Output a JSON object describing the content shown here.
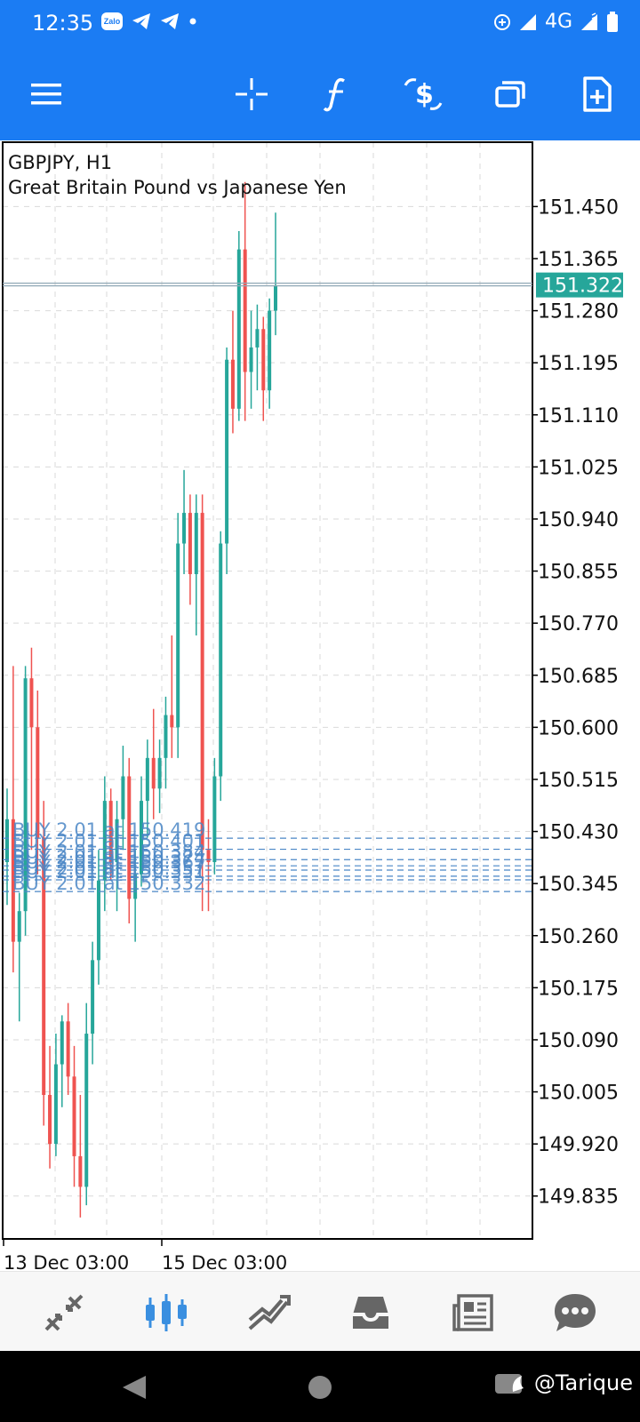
{
  "status_bar": {
    "time": "12:35",
    "zalo_label": "Zalo",
    "network": "4G",
    "left_icons": [
      "zalo-icon",
      "telegram-icon",
      "telegram-icon",
      "dot-icon"
    ],
    "right_icons": [
      "data-saver-icon",
      "signal-icon",
      "wifi-signal-icon",
      "battery-icon"
    ]
  },
  "toolbar": {
    "icons": [
      "menu-icon",
      "crosshair-icon",
      "indicators-icon",
      "trade-icon",
      "windows-icon",
      "new-order-icon"
    ]
  },
  "chart": {
    "symbol_line": "GBPJPY, H1",
    "description": "Great Britain Pound vs Japanese Yen",
    "current_price_label": "151.322",
    "price_labels": [
      "151.450",
      "151.365",
      "151.280",
      "151.195",
      "151.110",
      "151.025",
      "150.940",
      "150.855",
      "150.770",
      "150.685",
      "150.600",
      "150.515",
      "150.430",
      "150.345",
      "150.260",
      "150.175",
      "150.090",
      "150.005",
      "149.920",
      "149.835"
    ],
    "time_labels": [
      "13 Dec 03:00",
      "15 Dec 03:00"
    ],
    "order_labels": [
      "BUY 2.01 at 150.419",
      "BUY 2.01 at 150.401",
      "BUY 2.01 at 150.384",
      "BUY 2.01 at 150.374",
      "BUY 2.01 at 150.367",
      "BUY 2.01 at 150.357",
      "BUY 2.01 at 150.351",
      "BUY 2.01 at 150.332"
    ],
    "colors": {
      "bull": "#26a69a",
      "bear": "#ef5350",
      "order_line": "#4a86c6",
      "price_badge": "#26a69a"
    }
  },
  "chart_data": {
    "type": "candlestick",
    "y_range": [
      149.765,
      151.555
    ],
    "x_labels": [
      "13 Dec 03:00",
      "15 Dec 03:00"
    ],
    "current_price": 151.322,
    "orders": [
      150.419,
      150.401,
      150.384,
      150.374,
      150.367,
      150.357,
      150.351,
      150.332
    ],
    "candles": [
      [
        150.38,
        150.5,
        150.31,
        150.45
      ],
      [
        150.45,
        150.7,
        150.2,
        150.25
      ],
      [
        150.25,
        150.33,
        150.12,
        150.3
      ],
      [
        150.3,
        150.7,
        150.26,
        150.68
      ],
      [
        150.68,
        150.73,
        150.4,
        150.6
      ],
      [
        150.6,
        150.66,
        150.36,
        150.42
      ],
      [
        150.42,
        150.48,
        149.95,
        150.0
      ],
      [
        150.0,
        150.08,
        149.88,
        149.92
      ],
      [
        149.92,
        150.1,
        149.9,
        150.05
      ],
      [
        150.05,
        150.13,
        149.98,
        150.12
      ],
      [
        150.12,
        150.15,
        150.0,
        150.03
      ],
      [
        150.03,
        150.08,
        149.85,
        149.9
      ],
      [
        149.9,
        150.0,
        149.8,
        149.85
      ],
      [
        149.85,
        150.15,
        149.82,
        150.1
      ],
      [
        150.1,
        150.25,
        150.05,
        150.22
      ],
      [
        150.22,
        150.4,
        150.18,
        150.35
      ],
      [
        150.35,
        150.52,
        150.3,
        150.48
      ],
      [
        150.48,
        150.5,
        150.35,
        150.38
      ],
      [
        150.38,
        150.48,
        150.3,
        150.45
      ],
      [
        150.45,
        150.57,
        150.4,
        150.52
      ],
      [
        150.52,
        150.55,
        150.28,
        150.32
      ],
      [
        150.32,
        150.4,
        150.25,
        150.36
      ],
      [
        150.36,
        150.52,
        150.34,
        150.48
      ],
      [
        150.48,
        150.58,
        150.42,
        150.55
      ],
      [
        150.55,
        150.63,
        150.45,
        150.5
      ],
      [
        150.5,
        150.58,
        150.46,
        150.55
      ],
      [
        150.55,
        150.65,
        150.5,
        150.62
      ],
      [
        150.62,
        150.75,
        150.55,
        150.6
      ],
      [
        150.6,
        150.95,
        150.55,
        150.9
      ],
      [
        150.9,
        151.02,
        150.85,
        150.95
      ],
      [
        150.95,
        150.98,
        150.8,
        150.85
      ],
      [
        150.85,
        150.98,
        150.75,
        150.95
      ],
      [
        150.95,
        150.98,
        150.3,
        150.4
      ],
      [
        150.4,
        150.45,
        150.3,
        150.38
      ],
      [
        150.38,
        150.55,
        150.36,
        150.52
      ],
      [
        150.52,
        150.92,
        150.48,
        150.9
      ],
      [
        150.9,
        151.22,
        150.85,
        151.2
      ],
      [
        151.2,
        151.28,
        151.08,
        151.12
      ],
      [
        151.12,
        151.41,
        151.1,
        151.38
      ],
      [
        151.38,
        151.49,
        151.1,
        151.18
      ],
      [
        151.18,
        151.28,
        151.12,
        151.22
      ],
      [
        151.22,
        151.29,
        151.15,
        151.25
      ],
      [
        151.25,
        151.27,
        151.1,
        151.15
      ],
      [
        151.15,
        151.3,
        151.12,
        151.28
      ],
      [
        151.28,
        151.44,
        151.24,
        151.32
      ]
    ]
  },
  "bottom_nav": {
    "items": [
      "quotes-icon",
      "chart-icon",
      "trade-icon",
      "history-icon",
      "news-icon",
      "messages-icon"
    ],
    "active": 1
  },
  "system_nav": {
    "watermark": "@Tarique"
  }
}
